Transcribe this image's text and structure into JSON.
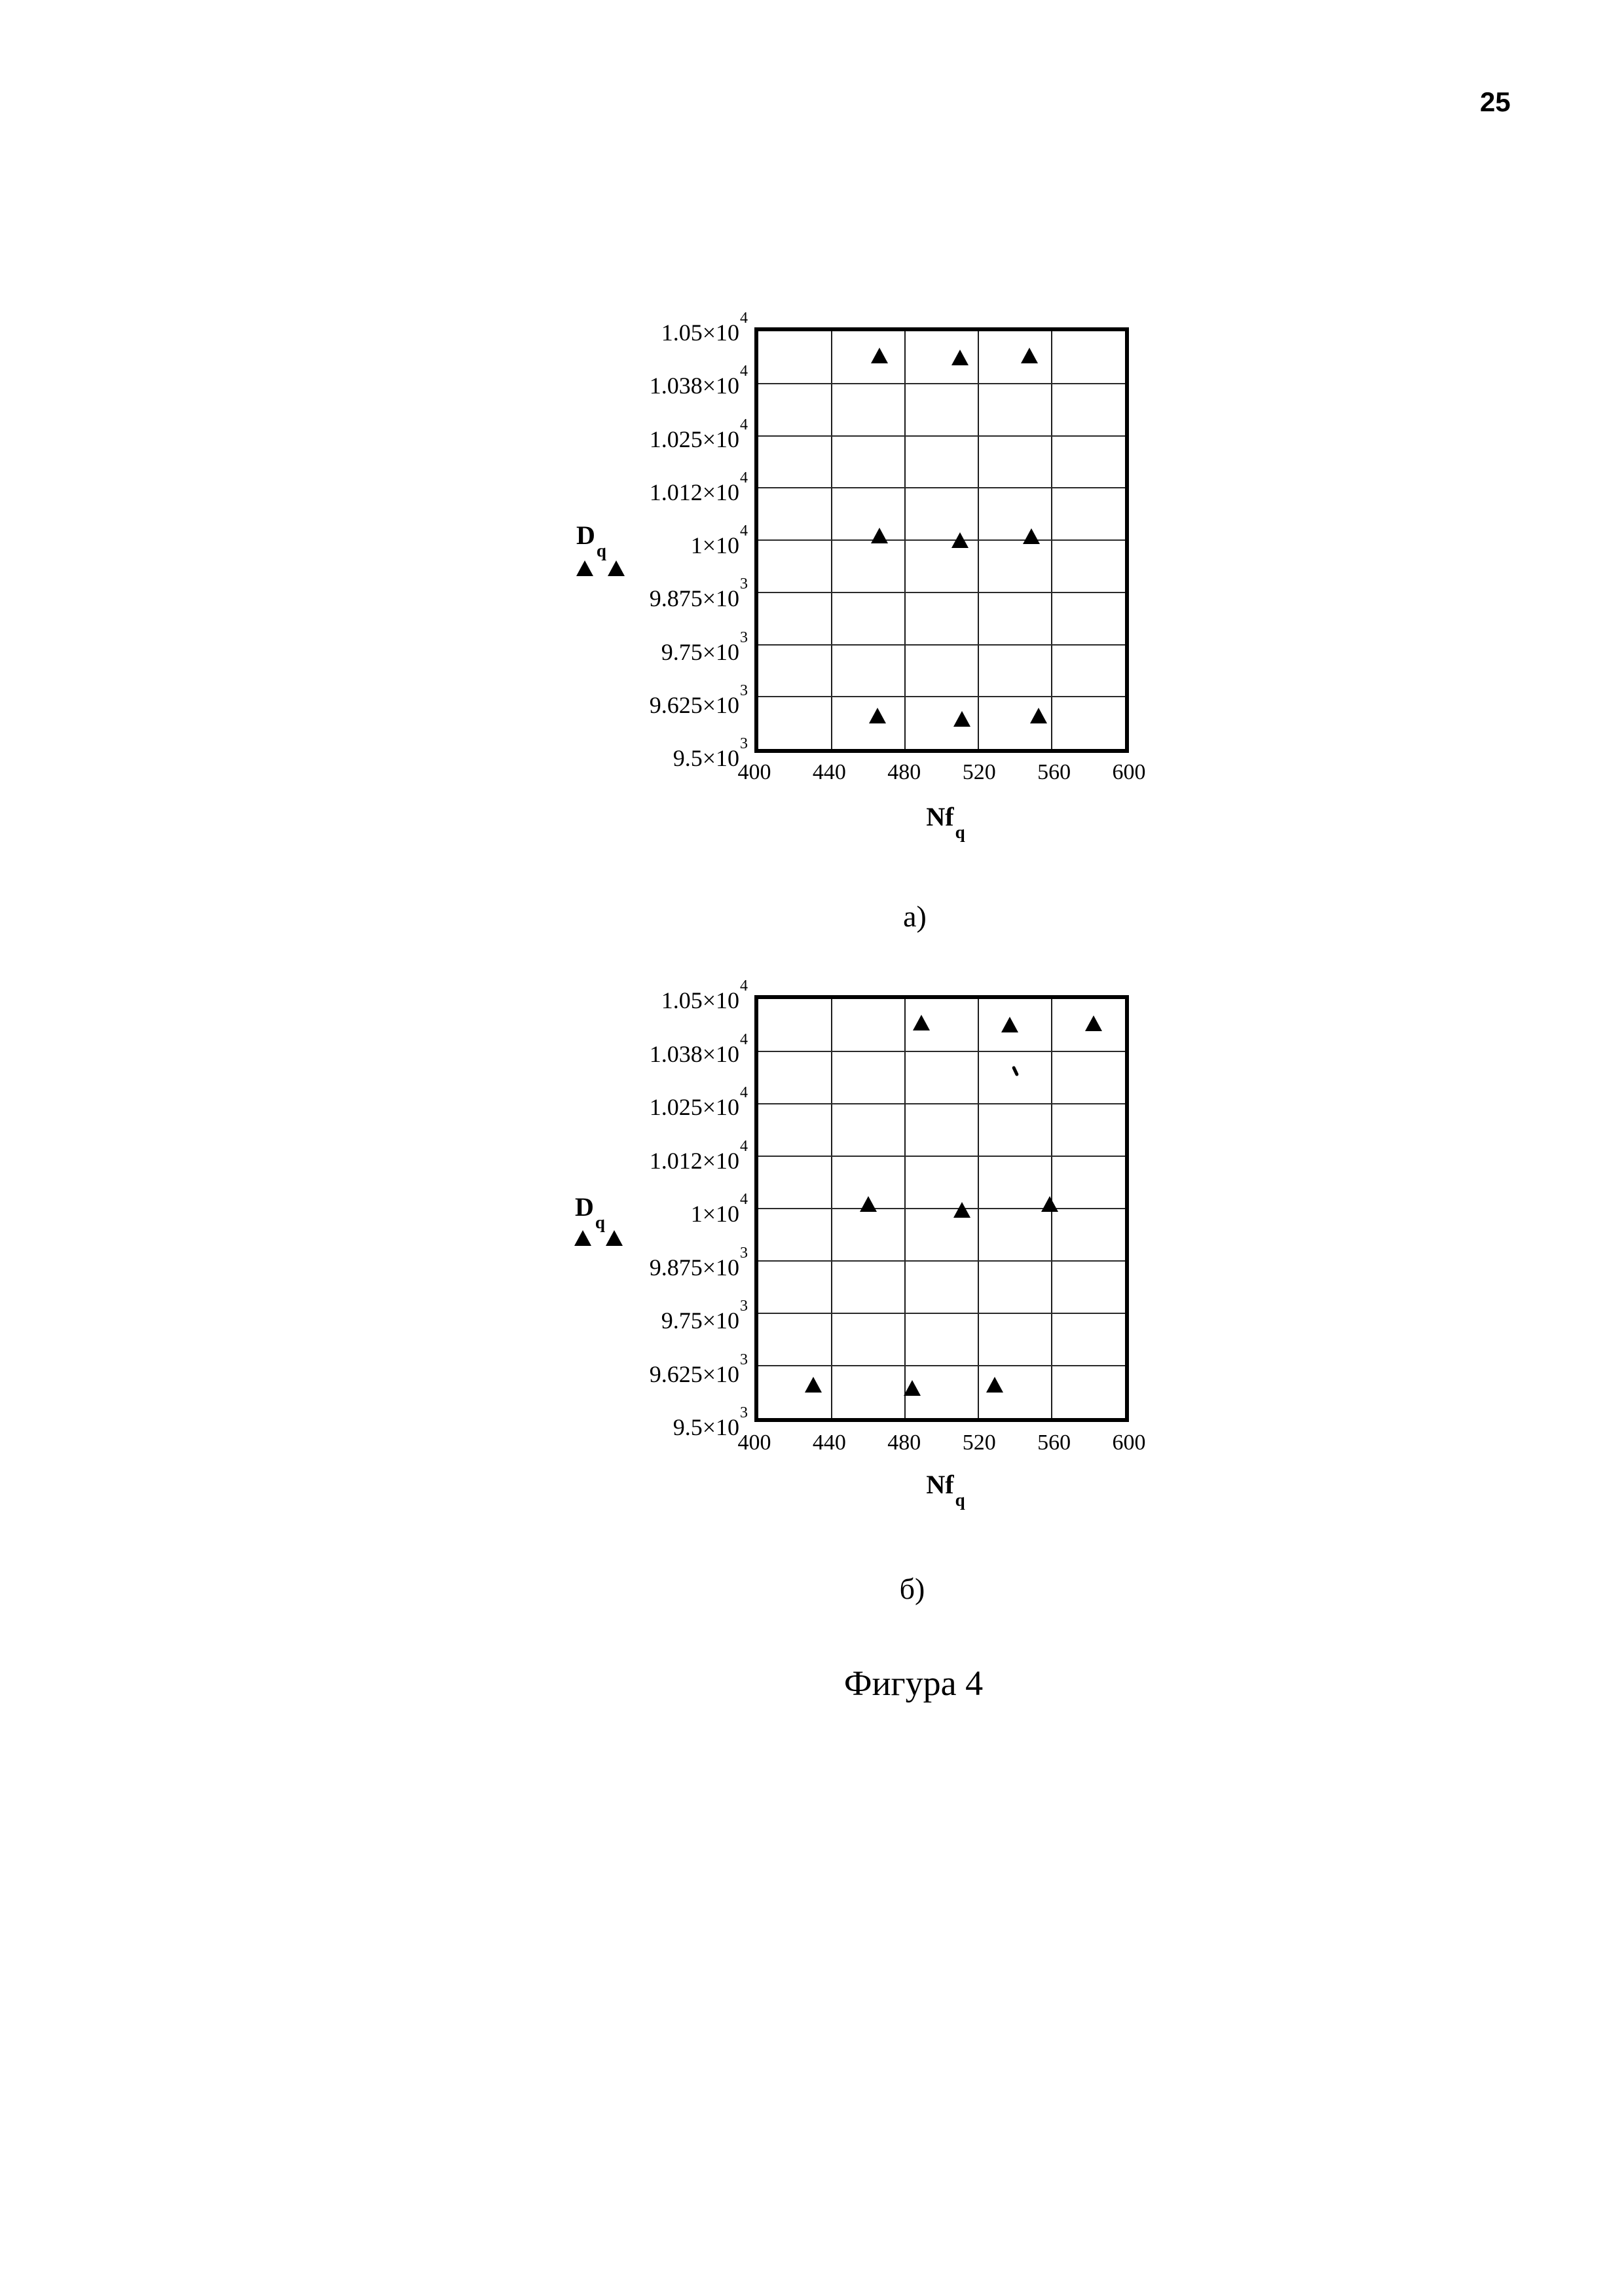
{
  "page": {
    "number": "25"
  },
  "figure": {
    "caption": "Фигура 4"
  },
  "axis": {
    "y_title": {
      "base": "D",
      "sub": "q"
    },
    "x_title": {
      "base": "Nf",
      "sub": "q"
    },
    "y_ticks": [
      {
        "m": "1.05×10",
        "e": "4"
      },
      {
        "m": "1.038×10",
        "e": "4"
      },
      {
        "m": "1.025×10",
        "e": "4"
      },
      {
        "m": "1.012×10",
        "e": "4"
      },
      {
        "m": "1×10",
        "e": "4"
      },
      {
        "m": "9.875×10",
        "e": "3"
      },
      {
        "m": "9.75×10",
        "e": "3"
      },
      {
        "m": "9.625×10",
        "e": "3"
      },
      {
        "m": "9.5×10",
        "e": "3"
      }
    ],
    "x_ticks": [
      "400",
      "440",
      "480",
      "520",
      "560",
      "600"
    ]
  },
  "charts": [
    {
      "caption": "а)"
    },
    {
      "caption": "б)"
    }
  ],
  "marker_color": "#000000",
  "chart_data": [
    {
      "type": "scatter",
      "marker": "filled-triangle",
      "title": "",
      "xlabel": "Nf_q",
      "ylabel": "D_q",
      "xlim": [
        400,
        600
      ],
      "ylim": [
        9500,
        10500
      ],
      "x_tick_interval": 40,
      "y_tick_interval": 125,
      "grid": true,
      "legend_marker_count": 2,
      "points": [
        [
          466,
          10440
        ],
        [
          510,
          10436
        ],
        [
          548,
          10440
        ],
        [
          466,
          10010
        ],
        [
          510,
          9998
        ],
        [
          549,
          10008
        ],
        [
          465,
          9578
        ],
        [
          511,
          9570
        ],
        [
          553,
          9578
        ]
      ]
    },
    {
      "type": "scatter",
      "marker": "filled-triangle",
      "title": "",
      "xlabel": "Nf_q",
      "ylabel": "D_q",
      "xlim": [
        400,
        600
      ],
      "ylim": [
        9500,
        10500
      ],
      "x_tick_interval": 40,
      "y_tick_interval": 125,
      "grid": true,
      "legend_marker_count": 2,
      "points": [
        [
          489,
          10442
        ],
        [
          537,
          10438
        ],
        [
          583,
          10440
        ],
        [
          460,
          10010
        ],
        [
          511,
          9996
        ],
        [
          559,
          10009
        ],
        [
          430,
          9578
        ],
        [
          484,
          9570
        ],
        [
          529,
          9578
        ]
      ]
    }
  ]
}
